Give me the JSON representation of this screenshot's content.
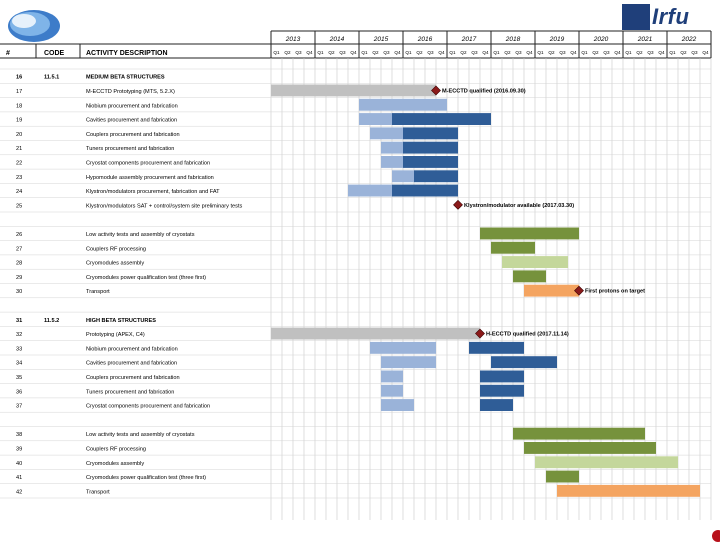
{
  "header": {
    "col_id": "#",
    "col_code": "CODE",
    "col_desc": "ACTIVITY DESCRIPTION",
    "logo_text": "Irfu"
  },
  "chart_data": {
    "type": "gantt",
    "years": [
      "2013",
      "2014",
      "2015",
      "2016",
      "2017",
      "2018",
      "2019",
      "2020",
      "2021",
      "2022"
    ],
    "quarters": [
      "Q1",
      "Q2",
      "Q3",
      "Q4"
    ],
    "start_year": 2013,
    "rows": [
      {
        "id": "16",
        "code": "11.5.1",
        "desc": "MEDIUM BETA STRUCTURES",
        "bold": true,
        "bars": []
      },
      {
        "id": "17",
        "code": "",
        "desc": "M-ECCTD Prototyping (MTS, 5.2.X)",
        "bars": [
          {
            "start": 0,
            "end": 15,
            "color": "#c0c0c0"
          }
        ]
      },
      {
        "id": "18",
        "code": "",
        "desc": "Niobium procurement and fabrication",
        "bars": [
          {
            "start": 8,
            "end": 16,
            "color": "#9ab3d9"
          }
        ]
      },
      {
        "id": "19",
        "code": "",
        "desc": "Cavities procurement and fabrication",
        "bars": [
          {
            "start": 8,
            "end": 11,
            "color": "#9ab3d9"
          },
          {
            "start": 11,
            "end": 20,
            "color": "#2f5d97"
          }
        ]
      },
      {
        "id": "20",
        "code": "",
        "desc": "Couplers procurement and fabrication",
        "bars": [
          {
            "start": 9,
            "end": 12,
            "color": "#9ab3d9"
          },
          {
            "start": 12,
            "end": 17,
            "color": "#2f5d97"
          }
        ]
      },
      {
        "id": "21",
        "code": "",
        "desc": "Tuners procurement and fabrication",
        "bars": [
          {
            "start": 10,
            "end": 12,
            "color": "#9ab3d9"
          },
          {
            "start": 12,
            "end": 17,
            "color": "#2f5d97"
          }
        ]
      },
      {
        "id": "22",
        "code": "",
        "desc": "Cryostat components procurement and fabrication",
        "bars": [
          {
            "start": 10,
            "end": 12,
            "color": "#9ab3d9"
          },
          {
            "start": 12,
            "end": 17,
            "color": "#2f5d97"
          }
        ]
      },
      {
        "id": "23",
        "code": "",
        "desc": "Hypomodule assembly procurement and fabrication",
        "bars": [
          {
            "start": 11,
            "end": 13,
            "color": "#9ab3d9"
          },
          {
            "start": 13,
            "end": 17,
            "color": "#2f5d97"
          }
        ]
      },
      {
        "id": "24",
        "code": "",
        "desc": "Klystron/modulators procurement, fabrication and FAT",
        "bars": [
          {
            "start": 7,
            "end": 11,
            "color": "#9ab3d9"
          },
          {
            "start": 11,
            "end": 17,
            "color": "#2f5d97"
          }
        ]
      },
      {
        "id": "25",
        "code": "",
        "desc": "Klystron/modulators SAT + control/system site preliminary tests",
        "bars": []
      },
      {
        "id": "",
        "code": "",
        "desc": "",
        "bars": []
      },
      {
        "id": "26",
        "code": "",
        "desc": "Low activity tests and assembly of cryostats",
        "bars": [
          {
            "start": 19,
            "end": 28,
            "color": "#76923c"
          }
        ]
      },
      {
        "id": "27",
        "code": "",
        "desc": "Couplers RF processing",
        "bars": [
          {
            "start": 20,
            "end": 24,
            "color": "#76923c"
          }
        ]
      },
      {
        "id": "28",
        "code": "",
        "desc": "Cryomodules assembly",
        "bars": [
          {
            "start": 21,
            "end": 27,
            "color": "#c4d79b"
          }
        ]
      },
      {
        "id": "29",
        "code": "",
        "desc": "Cryomodules power qualification test (three first)",
        "bars": [
          {
            "start": 22,
            "end": 25,
            "color": "#76923c"
          }
        ]
      },
      {
        "id": "30",
        "code": "",
        "desc": "Transport",
        "bars": [
          {
            "start": 23,
            "end": 28,
            "color": "#f4a460"
          }
        ]
      },
      {
        "id": "",
        "code": "",
        "desc": "",
        "bars": []
      },
      {
        "id": "31",
        "code": "11.5.2",
        "desc": "HIGH BETA STRUCTURES",
        "bold": true,
        "bars": []
      },
      {
        "id": "32",
        "code": "",
        "desc": "Prototyping (APEX, C4)",
        "bars": [
          {
            "start": 0,
            "end": 19,
            "color": "#c0c0c0"
          }
        ]
      },
      {
        "id": "33",
        "code": "",
        "desc": "Niobium procurement and fabrication",
        "bars": [
          {
            "start": 9,
            "end": 15,
            "color": "#9ab3d9"
          },
          {
            "start": 18,
            "end": 23,
            "color": "#2f5d97"
          }
        ]
      },
      {
        "id": "34",
        "code": "",
        "desc": "Cavities procurement and fabrication",
        "bars": [
          {
            "start": 10,
            "end": 15,
            "color": "#9ab3d9"
          },
          {
            "start": 20,
            "end": 26,
            "color": "#2f5d97"
          }
        ]
      },
      {
        "id": "35",
        "code": "",
        "desc": "Couplers procurement and fabrication",
        "bars": [
          {
            "start": 10,
            "end": 12,
            "color": "#9ab3d9"
          },
          {
            "start": 19,
            "end": 23,
            "color": "#2f5d97"
          }
        ]
      },
      {
        "id": "36",
        "code": "",
        "desc": "Tuners procurement and fabrication",
        "bars": [
          {
            "start": 10,
            "end": 12,
            "color": "#9ab3d9"
          },
          {
            "start": 19,
            "end": 23,
            "color": "#2f5d97"
          }
        ]
      },
      {
        "id": "37",
        "code": "",
        "desc": "Cryostat components procurement and fabrication",
        "bars": [
          {
            "start": 10,
            "end": 13,
            "color": "#9ab3d9"
          },
          {
            "start": 19,
            "end": 22,
            "color": "#2f5d97"
          }
        ]
      },
      {
        "id": "",
        "code": "",
        "desc": "",
        "bars": []
      },
      {
        "id": "38",
        "code": "",
        "desc": "Low activity tests and assembly of cryostats",
        "bars": [
          {
            "start": 22,
            "end": 34,
            "color": "#76923c"
          }
        ]
      },
      {
        "id": "39",
        "code": "",
        "desc": "Couplers RF processing",
        "bars": [
          {
            "start": 23,
            "end": 35,
            "color": "#76923c"
          }
        ]
      },
      {
        "id": "40",
        "code": "",
        "desc": "Cryomodules assembly",
        "bars": [
          {
            "start": 24,
            "end": 37,
            "color": "#c4d79b"
          }
        ]
      },
      {
        "id": "41",
        "code": "",
        "desc": "Cryomodules power qualification test (three first)",
        "bars": [
          {
            "start": 25,
            "end": 28,
            "color": "#76923c"
          }
        ]
      },
      {
        "id": "42",
        "code": "",
        "desc": "Transport",
        "bars": [
          {
            "start": 26,
            "end": 39,
            "color": "#f4a460"
          }
        ]
      }
    ],
    "milestones": [
      {
        "row": 1,
        "at": 15,
        "label": "M-ECCTD qualified (2016.09.30)"
      },
      {
        "row": 9,
        "at": 17,
        "label": "Klystron/modulator available (2017.03.30)"
      },
      {
        "row": 15,
        "at": 28,
        "label": "First protons on target"
      },
      {
        "row": 18,
        "at": 19,
        "label": "H-ECCTD qualified (2017.11.14)"
      }
    ]
  }
}
